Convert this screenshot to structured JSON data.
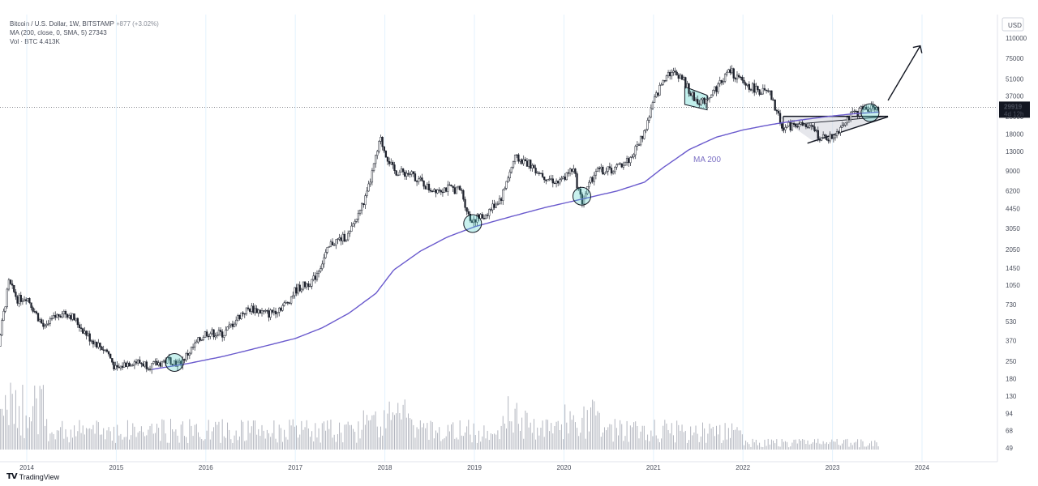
{
  "header": {
    "symbol": "Bitcoin / U.S. Dollar, 1W, BITSTAMP",
    "change": "+877 (+3.02%)",
    "ma_label": "MA (200, close, 0, SMA, 5)",
    "ma_value": "27343",
    "vol_label": "Vol · BTC",
    "vol_value": "4.413K"
  },
  "footer": {
    "brand": "TradingView"
  },
  "chart_data": {
    "type": "line",
    "scale": "log",
    "currency": "USD",
    "y_ticks": [
      "110000",
      "75000",
      "51000",
      "37000",
      "25000",
      "18000",
      "13000",
      "9000",
      "6200",
      "4450",
      "3050",
      "2050",
      "1450",
      "1050",
      "730",
      "530",
      "370",
      "250",
      "180",
      "130",
      "94",
      "68",
      "49"
    ],
    "x_ticks": [
      "2014",
      "2015",
      "2016",
      "2017",
      "2018",
      "2019",
      "2020",
      "2021",
      "2022",
      "2023",
      "2024"
    ],
    "last_price": {
      "value": "29919",
      "countdown": "4d 12h"
    },
    "series": [
      {
        "name": "BTC price",
        "x": [
          2013.55,
          2013.8,
          2013.9,
          2014.0,
          2014.1,
          2014.2,
          2014.3,
          2014.4,
          2014.5,
          2014.6,
          2014.7,
          2014.8,
          2014.9,
          2015.0,
          2015.1,
          2015.2,
          2015.4,
          2015.5,
          2015.6,
          2015.7,
          2015.85,
          2016.0,
          2016.2,
          2016.4,
          2016.5,
          2016.7,
          2016.9,
          2017.0,
          2017.2,
          2017.4,
          2017.6,
          2017.8,
          2017.95,
          2018.0,
          2018.1,
          2018.3,
          2018.5,
          2018.7,
          2018.85,
          2018.95,
          2019.1,
          2019.3,
          2019.45,
          2019.6,
          2019.8,
          2019.95,
          2020.1,
          2020.2,
          2020.35,
          2020.55,
          2020.75,
          2020.9,
          2021.0,
          2021.15,
          2021.3,
          2021.45,
          2021.55,
          2021.7,
          2021.85,
          2022.0,
          2022.15,
          2022.3,
          2022.45,
          2022.6,
          2022.8,
          2022.87,
          2023.0,
          2023.15,
          2023.3,
          2023.45,
          2023.52
        ],
        "values": [
          90,
          1100,
          800,
          850,
          620,
          460,
          560,
          640,
          590,
          480,
          390,
          340,
          300,
          210,
          240,
          250,
          230,
          245,
          260,
          235,
          320,
          430,
          420,
          620,
          680,
          610,
          740,
          960,
          1150,
          2300,
          2700,
          5800,
          16500,
          13000,
          9000,
          8500,
          6400,
          6500,
          6300,
          3600,
          3800,
          5500,
          11500,
          10500,
          8000,
          7200,
          9500,
          5000,
          9000,
          9200,
          11500,
          19000,
          33000,
          58000,
          55000,
          35000,
          33000,
          43000,
          60000,
          47000,
          42000,
          38000,
          20000,
          22000,
          19500,
          16500,
          17000,
          24000,
          28000,
          30500,
          29919
        ]
      },
      {
        "name": "MA 200",
        "x": [
          2015.4,
          2015.8,
          2016.2,
          2016.6,
          2017.0,
          2017.3,
          2017.6,
          2017.9,
          2018.1,
          2018.4,
          2018.7,
          2019.0,
          2019.4,
          2019.8,
          2020.2,
          2020.6,
          2020.9,
          2021.1,
          2021.4,
          2021.7,
          2022.0,
          2022.3,
          2022.6,
          2022.9,
          2023.2,
          2023.52
        ],
        "values": [
          215,
          240,
          275,
          325,
          385,
          470,
          620,
          900,
          1400,
          2000,
          2600,
          3150,
          3800,
          4550,
          5300,
          6200,
          7300,
          9500,
          13500,
          17000,
          19500,
          21500,
          23300,
          24900,
          26300,
          27343
        ]
      }
    ],
    "annotations": [
      "MA 200"
    ]
  }
}
